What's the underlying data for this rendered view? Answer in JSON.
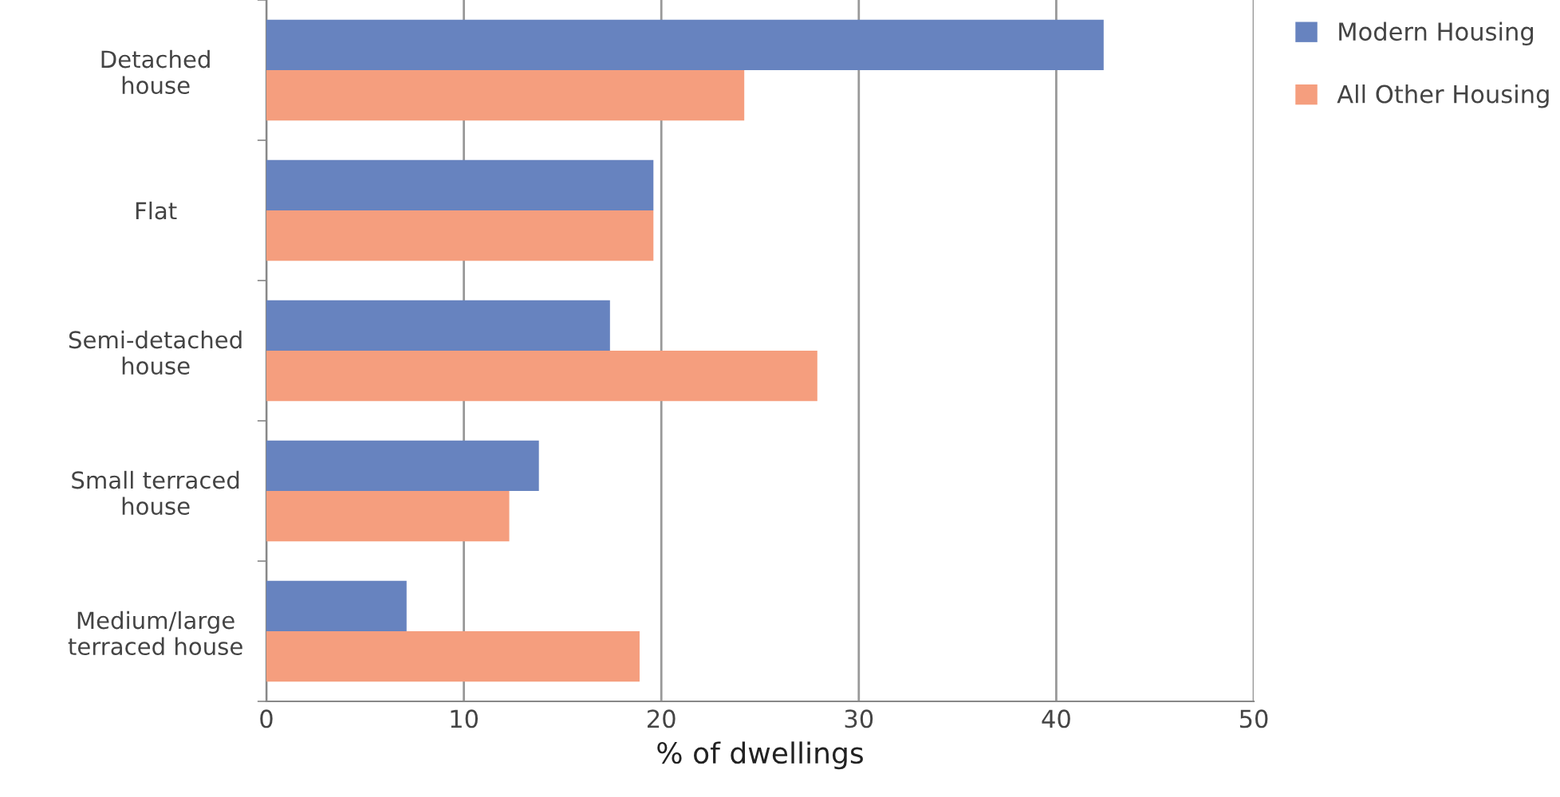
{
  "chart_data": {
    "type": "bar",
    "orientation": "horizontal",
    "xlabel": "% of dwellings",
    "categories": [
      "Detached\nhouse",
      "Flat",
      "Semi-detached\nhouse",
      "Small terraced\nhouse",
      "Medium/large\nterraced house"
    ],
    "series": [
      {
        "name": "Modern Housing",
        "color": "#6783bf",
        "values": [
          42.4,
          19.6,
          17.4,
          13.8,
          7.1
        ]
      },
      {
        "name": "All Other Housing",
        "color": "#f59e7e",
        "values": [
          24.2,
          19.6,
          27.9,
          12.3,
          18.9
        ]
      }
    ],
    "xlim": [
      0,
      50
    ],
    "xticks": [
      0,
      10,
      20,
      30,
      40,
      50
    ],
    "grid": "x",
    "legend": "top right"
  }
}
